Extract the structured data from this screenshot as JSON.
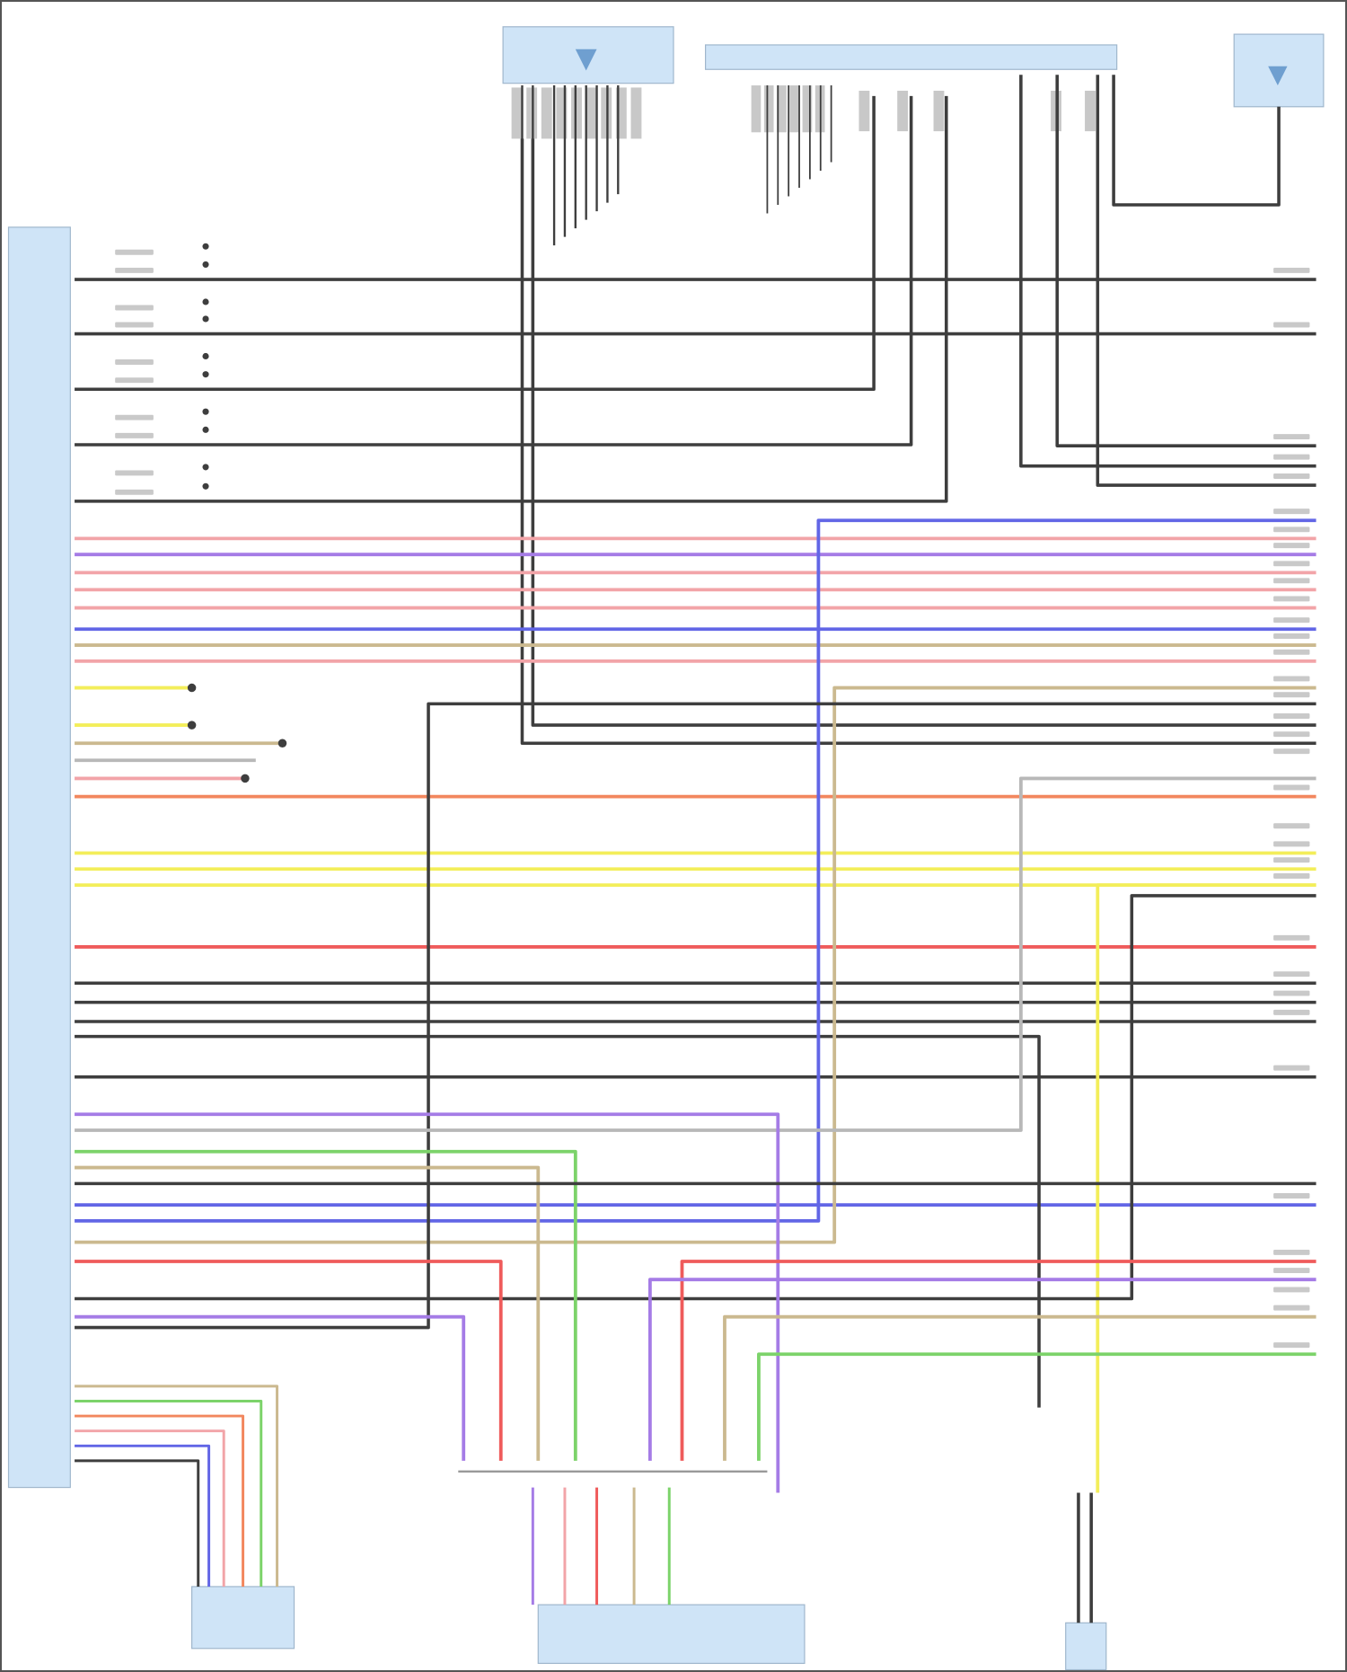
{
  "diagram": {
    "colors": {
      "black": "#3e3e3e",
      "gray": "#b8b8b8",
      "pink": "#f2a4a8",
      "purple": "#a57ce6",
      "blue": "#6266e6",
      "tan": "#cbb98f",
      "yellow": "#f3ee5a",
      "orange": "#f2875e",
      "red": "#ef5b5b",
      "green": "#7cd36a",
      "module": "#cfe4f7"
    },
    "modules": [
      {
        "kind": "control-unit-left"
      },
      {
        "kind": "top-unit"
      },
      {
        "kind": "top-connector"
      },
      {
        "kind": "top-right-unit"
      },
      {
        "kind": "bottom-left-unit"
      },
      {
        "kind": "bottom-center-unit"
      },
      {
        "kind": "bottom-right-unit"
      }
    ]
  }
}
